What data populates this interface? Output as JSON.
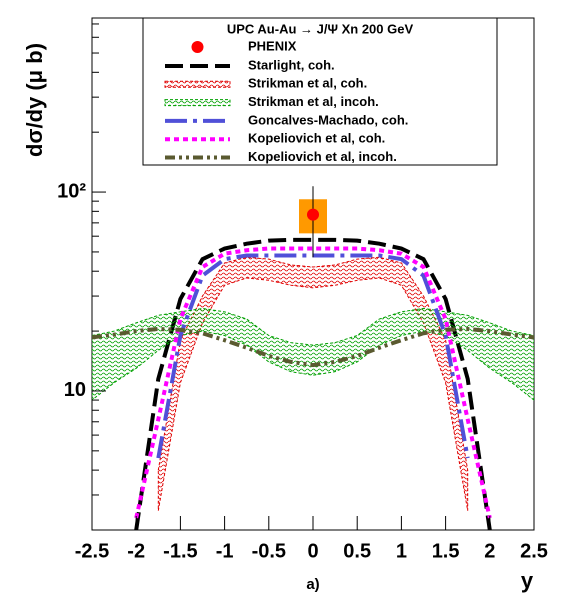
{
  "chart_data": {
    "type": "line",
    "title": "UPC Au-Au → J/Ψ Xn   200 GeV",
    "ylabel": "dσ/dy (μ b)",
    "xlabel": "y",
    "panel_label": "a)",
    "log_y": true,
    "xlim": [
      -2.5,
      2.5
    ],
    "ylim": [
      2,
      750
    ],
    "xticks": [
      -2.5,
      -2,
      -1.5,
      -1,
      -0.5,
      0,
      0.5,
      1,
      1.5,
      2,
      2.5
    ],
    "yticks": [
      10,
      {
        "value": 100,
        "label": "10²"
      }
    ],
    "yminorticks": [
      2,
      3,
      4,
      5,
      6,
      7,
      8,
      9,
      20,
      30,
      40,
      50,
      60,
      70,
      80,
      90,
      200,
      300,
      400,
      500,
      600,
      700
    ],
    "x": [
      -2.5,
      -2.25,
      -2,
      -1.75,
      -1.5,
      -1.25,
      -1,
      -0.75,
      -0.5,
      -0.25,
      0,
      0.25,
      0.5,
      0.75,
      1,
      1.25,
      1.5,
      1.75,
      2,
      2.25,
      2.5
    ],
    "points": {
      "name": "PHENIX",
      "color": "#ff0000",
      "syst_color": "#ff9900",
      "x": [
        0
      ],
      "values": [
        77
      ],
      "error": [
        30
      ],
      "syst": [
        15
      ]
    },
    "series": [
      {
        "name": "Starlight, coh.",
        "color": "#000000",
        "style": "dash",
        "values": [
          null,
          null,
          2.0,
          11.5,
          29,
          46,
          52,
          55,
          57,
          57.5,
          57.5,
          57.5,
          57,
          55,
          52,
          46,
          29,
          11.5,
          2.0,
          null,
          null
        ]
      },
      {
        "name": "Strikman et al, coh.",
        "color": "#e00000",
        "style": "band",
        "low": [
          null,
          null,
          null,
          2.5,
          11,
          22,
          34,
          37,
          36,
          34,
          33,
          34,
          36,
          37,
          34,
          22,
          11,
          2.5,
          null,
          null,
          null
        ],
        "high": [
          null,
          null,
          null,
          4,
          18,
          30,
          44,
          47,
          46,
          43,
          42,
          43,
          46,
          47,
          44,
          30,
          18,
          4,
          null,
          null,
          null
        ]
      },
      {
        "name": "Strikman et al, incoh.",
        "color": "#00a000",
        "style": "band",
        "low": [
          9,
          11,
          13,
          16,
          19,
          20,
          19,
          17,
          14,
          12.5,
          12,
          12.5,
          14,
          17,
          19,
          20,
          19,
          16,
          13,
          11,
          9
        ],
        "high": [
          19,
          20,
          22,
          24,
          25,
          26,
          25,
          23,
          19,
          17.5,
          17,
          17.5,
          19,
          23,
          25,
          26,
          25,
          24,
          22,
          20,
          19
        ]
      },
      {
        "name": "Goncalves-Machado, coh.",
        "color": "#5050d8",
        "style": "dashdot",
        "values": [
          null,
          null,
          null,
          4.6,
          19,
          38,
          46,
          48,
          48,
          48,
          48,
          48,
          48,
          48,
          46,
          38,
          19,
          4.6,
          null,
          null,
          null
        ]
      },
      {
        "name": "Kopeliovich et al, coh.",
        "color": "#ff00ff",
        "style": "dot",
        "values": [
          null,
          null,
          2.3,
          7.2,
          23,
          42,
          49,
          51,
          52,
          52,
          52,
          52,
          52,
          51,
          49,
          42,
          23,
          7.2,
          2.3,
          null,
          null
        ]
      },
      {
        "name": "Kopeliovich et al, incoh.",
        "color": "#5a5a30",
        "style": "dashdotdot",
        "values": [
          18.6,
          19.2,
          20,
          20.5,
          20.3,
          19.5,
          18,
          16.5,
          15,
          14,
          13.5,
          14,
          15,
          16.5,
          18,
          19.5,
          20.3,
          20.5,
          20,
          19.2,
          18.6
        ]
      }
    ]
  }
}
